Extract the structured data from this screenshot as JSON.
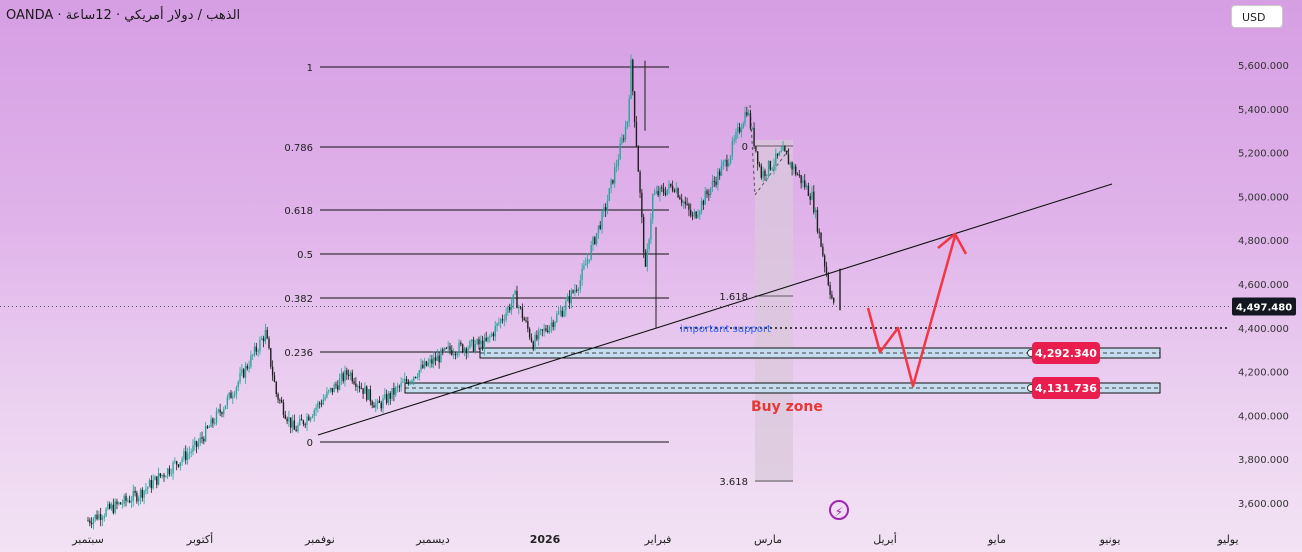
{
  "header": {
    "symbol": "الذهب / دولار أمريكي · 12ساعة · OANDA"
  },
  "currency_button": {
    "label": "USD"
  },
  "icons": {
    "lightning": "lightning-icon"
  },
  "colors": {
    "up_candle": "#26a69a",
    "down_candle": "#1f1f1f",
    "trendline": "#111111",
    "fib_line": "#111111",
    "zone_fill": "#c5dcee",
    "zone_border": "#111111",
    "price_tag": "#e91e4f",
    "projection_arrow": "#f23645",
    "buy_zone_text": "#e53935",
    "support_text": "#2962ff"
  },
  "chart_data": {
    "type": "candlestick",
    "y_axis": {
      "range": [
        3520,
        5800
      ],
      "ticks": [
        3600,
        3800,
        4000,
        4200,
        4400,
        4600,
        4800,
        5000,
        5200,
        5400,
        5600
      ],
      "tick_labels": [
        "3,600.000",
        "3,800.000",
        "4,000.000",
        "4,200.000",
        "4,400.000",
        "4,600.000",
        "4,800.000",
        "5,000.000",
        "5,200.000",
        "5,400.000",
        "5,600.000"
      ]
    },
    "x_axis": {
      "labels": [
        "سبتمبر",
        "أكتوبر",
        "نوفمبر",
        "ديسمبر",
        "2026",
        "فبراير",
        "مارس",
        "أبريل",
        "مايو",
        "يونيو",
        "يوليو"
      ]
    },
    "price_path": [
      {
        "date": "2025-09-01",
        "price": 3520
      },
      {
        "date": "2025-09-15",
        "price": 3640
      },
      {
        "date": "2025-10-01",
        "price": 3860
      },
      {
        "date": "2025-10-10",
        "price": 4080
      },
      {
        "date": "2025-10-20",
        "price": 4375
      },
      {
        "date": "2025-10-23",
        "price": 4100
      },
      {
        "date": "2025-10-28",
        "price": 3930
      },
      {
        "date": "2025-11-12",
        "price": 4200
      },
      {
        "date": "2025-11-20",
        "price": 4040
      },
      {
        "date": "2025-12-01",
        "price": 4200
      },
      {
        "date": "2025-12-10",
        "price": 4300
      },
      {
        "date": "2025-12-20",
        "price": 4330
      },
      {
        "date": "2025-12-28",
        "price": 4540
      },
      {
        "date": "2026-01-02",
        "price": 4330
      },
      {
        "date": "2026-01-10",
        "price": 4480
      },
      {
        "date": "2026-01-15",
        "price": 4620
      },
      {
        "date": "2026-01-22",
        "price": 4950
      },
      {
        "date": "2026-01-28",
        "price": 5350
      },
      {
        "date": "2026-01-29",
        "price": 5600
      },
      {
        "date": "2026-02-02",
        "price": 4650
      },
      {
        "date": "2026-02-04",
        "price": 5000
      },
      {
        "date": "2026-02-10",
        "price": 5050
      },
      {
        "date": "2026-02-15",
        "price": 4900
      },
      {
        "date": "2026-02-25",
        "price": 5180
      },
      {
        "date": "2026-03-02",
        "price": 5400
      },
      {
        "date": "2026-03-06",
        "price": 5100
      },
      {
        "date": "2026-03-12",
        "price": 5200
      },
      {
        "date": "2026-03-20",
        "price": 5000
      },
      {
        "date": "2026-03-24",
        "price": 4650
      },
      {
        "date": "2026-03-26",
        "price": 4497.48
      }
    ],
    "current_price": {
      "value": 4497.48,
      "label": "4,497.480"
    },
    "fibonacci_levels": [
      {
        "ratio": 1,
        "label": "1",
        "price": 5593
      },
      {
        "ratio": 0.786,
        "label": "0.786",
        "price": 5410
      },
      {
        "ratio": 0.618,
        "label": "0.618",
        "price": 5264
      },
      {
        "ratio": 0.5,
        "label": "0.5",
        "price": 5163
      },
      {
        "ratio": 0.382,
        "label": "0.382",
        "price": 5062
      },
      {
        "ratio": 0.236,
        "label": "0.236",
        "price": 4272
      },
      {
        "ratio": 0,
        "label": "0",
        "price": 3888
      }
    ],
    "fib_extension": [
      {
        "label": "0",
        "price": 5225
      },
      {
        "label": "1.618",
        "price": 4528
      },
      {
        "label": "2.618",
        "price": 4128
      },
      {
        "label": "3.618",
        "price": 3700
      }
    ],
    "zones": [
      {
        "label": "4,292.340",
        "value": 4292.34
      },
      {
        "label": "4,131.736",
        "value": 4131.736
      }
    ],
    "annotations": {
      "important_support": "important support",
      "buy_zone": "Buy zone"
    }
  }
}
